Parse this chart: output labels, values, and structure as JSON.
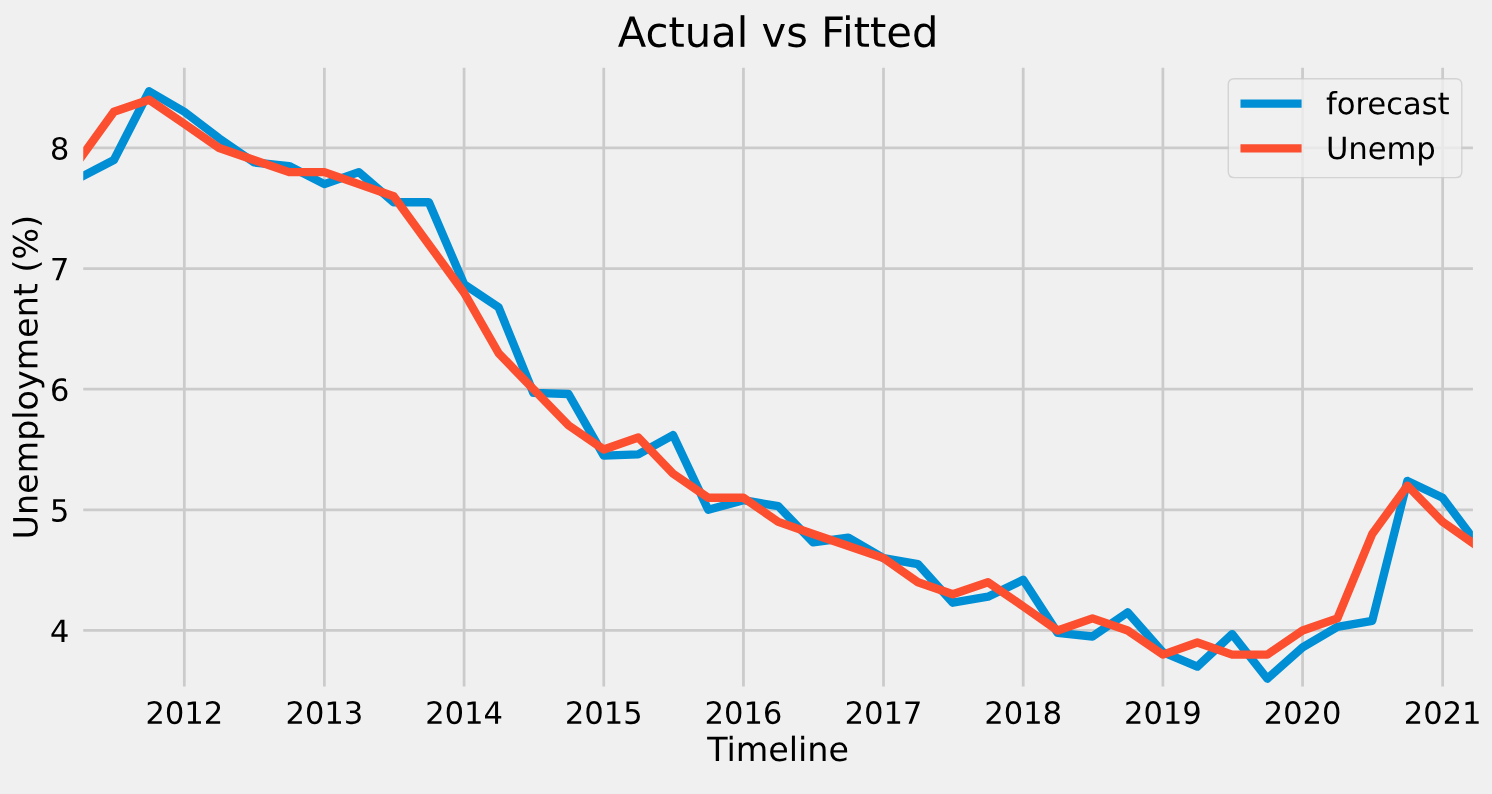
{
  "chart_data": {
    "type": "line",
    "title": "Actual vs Fitted",
    "xlabel": "Timeline",
    "ylabel": "Unemployment (%)",
    "x": [
      "2011-04-01",
      "2011-07-01",
      "2011-10-01",
      "2012-01-01",
      "2012-04-01",
      "2012-07-01",
      "2012-10-01",
      "2013-01-01",
      "2013-04-01",
      "2013-07-01",
      "2013-10-01",
      "2014-01-01",
      "2014-04-01",
      "2014-07-01",
      "2014-10-01",
      "2015-01-01",
      "2015-04-01",
      "2015-07-01",
      "2015-10-01",
      "2016-01-01",
      "2016-04-01",
      "2016-07-01",
      "2016-10-01",
      "2017-01-01",
      "2017-04-01",
      "2017-07-01",
      "2017-10-01",
      "2018-01-01",
      "2018-04-01",
      "2018-07-01",
      "2018-10-01",
      "2019-01-01",
      "2019-04-01",
      "2019-07-01",
      "2019-10-01",
      "2020-01-01",
      "2020-04-01",
      "2020-07-01",
      "2020-10-01",
      "2021-01-01",
      "2021-04-01"
    ],
    "series": [
      {
        "name": "forecast",
        "color": "#008fd5",
        "values": [
          7.75,
          7.9,
          8.47,
          8.3,
          8.08,
          7.88,
          7.85,
          7.7,
          7.8,
          7.55,
          7.55,
          6.87,
          6.68,
          5.97,
          5.96,
          5.45,
          5.46,
          5.62,
          5.0,
          5.08,
          5.03,
          4.73,
          4.77,
          4.6,
          4.55,
          4.23,
          4.28,
          4.42,
          3.98,
          3.95,
          4.15,
          3.82,
          3.7,
          3.97,
          3.6,
          3.86,
          4.03,
          4.08,
          5.24,
          5.1,
          4.72
        ]
      },
      {
        "name": "Unemp",
        "color": "#fc4f30",
        "values": [
          7.9,
          8.3,
          8.4,
          8.2,
          8.0,
          7.9,
          7.8,
          7.8,
          7.7,
          7.6,
          7.2,
          6.8,
          6.3,
          6.0,
          5.7,
          5.5,
          5.6,
          5.3,
          5.1,
          5.1,
          4.9,
          4.8,
          4.7,
          4.6,
          4.4,
          4.3,
          4.4,
          4.2,
          4.0,
          4.1,
          4.0,
          3.8,
          3.9,
          3.8,
          3.8,
          4.0,
          4.1,
          4.8,
          5.2,
          4.9,
          4.7
        ]
      }
    ],
    "xlim": [
      "2011-04-01",
      "2021-04-01"
    ],
    "xticks": [
      {
        "value": "2012-01-01",
        "label": "2012"
      },
      {
        "value": "2013-01-01",
        "label": "2013"
      },
      {
        "value": "2014-01-01",
        "label": "2014"
      },
      {
        "value": "2015-01-01",
        "label": "2015"
      },
      {
        "value": "2016-01-01",
        "label": "2016"
      },
      {
        "value": "2017-01-01",
        "label": "2017"
      },
      {
        "value": "2018-01-01",
        "label": "2018"
      },
      {
        "value": "2019-01-01",
        "label": "2019"
      },
      {
        "value": "2020-01-01",
        "label": "2020"
      },
      {
        "value": "2021-01-01",
        "label": "2021"
      }
    ],
    "ylim": [
      3.5,
      8.7
    ],
    "yticks": [
      4,
      5,
      6,
      7,
      8
    ],
    "grid": true,
    "legend": "top right",
    "marker": "none",
    "line_style": "solid"
  }
}
